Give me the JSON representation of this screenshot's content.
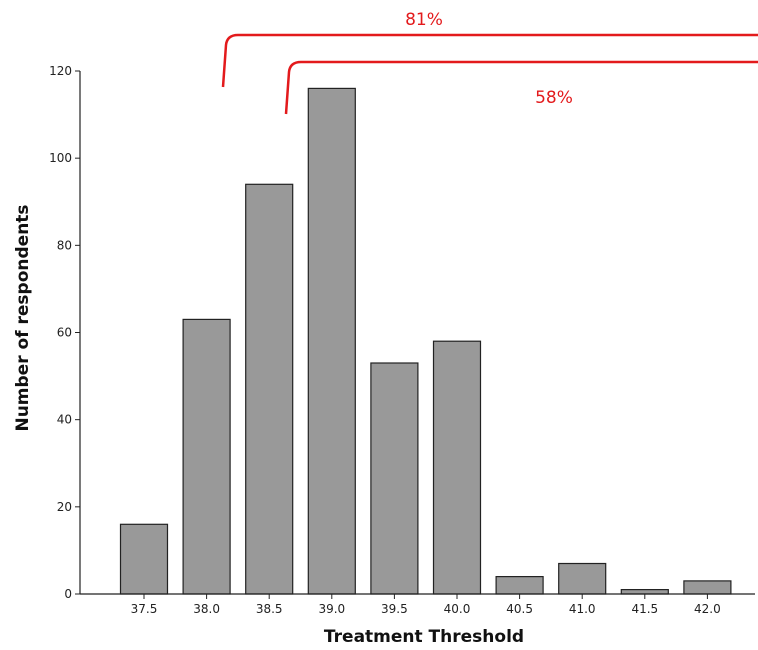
{
  "chart_data": {
    "type": "bar",
    "categories": [
      "37.5",
      "38.0",
      "38.5",
      "39.0",
      "39.5",
      "40.0",
      "40.5",
      "41.0",
      "41.5",
      "42.0"
    ],
    "values": [
      16,
      63,
      94,
      116,
      53,
      58,
      4,
      7,
      1,
      3
    ],
    "xlabel": "Treatment Threshold",
    "ylabel": "Number of respondents",
    "ylim": [
      0,
      120
    ],
    "yticks": [
      0,
      20,
      40,
      60,
      80,
      100,
      120
    ],
    "grid": false,
    "colors": {
      "bar": "#999999",
      "bar_edge": "#222222",
      "annotation": "#e31a1c"
    },
    "annotations": [
      {
        "label": "81%",
        "from_category": "38.0"
      },
      {
        "label": "58%",
        "from_category": "38.5"
      }
    ]
  }
}
